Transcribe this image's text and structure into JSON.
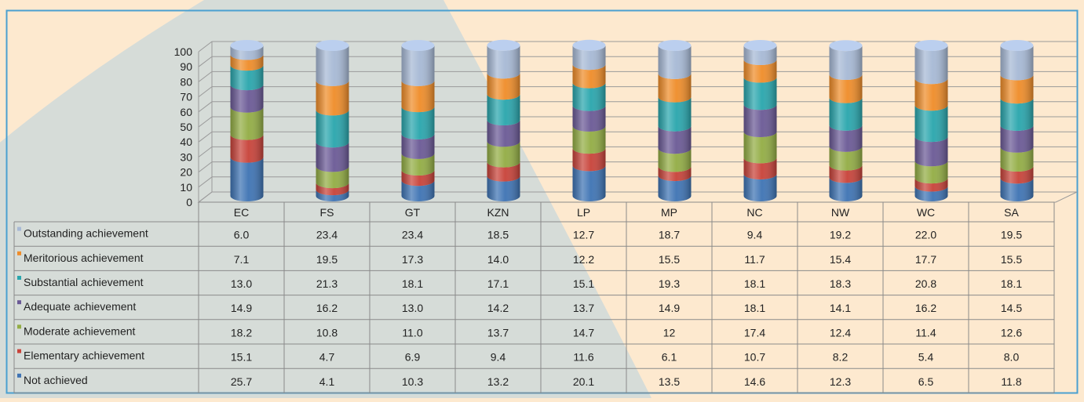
{
  "chart_data": {
    "type": "bar",
    "subtype": "stacked-cylinder-3d",
    "title": "",
    "xlabel": "",
    "ylabel": "",
    "ylim": [
      0,
      100
    ],
    "yticks": [
      0,
      10,
      20,
      30,
      40,
      50,
      60,
      70,
      80,
      90,
      100
    ],
    "grid": true,
    "legend_placement": "data-table-left",
    "categories": [
      "EC",
      "FS",
      "GT",
      "KZN",
      "LP",
      "MP",
      "NC",
      "NW",
      "WC",
      "SA"
    ],
    "series": [
      {
        "name": "Outstanding achievement",
        "color": "#a7b9d5",
        "values": [
          6.0,
          23.4,
          23.4,
          18.5,
          12.7,
          18.7,
          9.4,
          19.2,
          22.0,
          19.5
        ],
        "labels": [
          "6.0",
          "23.4",
          "23.4",
          "18.5",
          "12.7",
          "18.7",
          "9.4",
          "19.2",
          "22.0",
          "19.5"
        ]
      },
      {
        "name": "Meritorious achievement",
        "color": "#ef8d2a",
        "values": [
          7.1,
          19.5,
          17.3,
          14.0,
          12.2,
          15.5,
          11.7,
          15.4,
          17.7,
          15.5
        ],
        "labels": [
          "7.1",
          "19.5",
          "17.3",
          "14.0",
          "12.2",
          "15.5",
          "11.7",
          "15.4",
          "17.7",
          "15.5"
        ]
      },
      {
        "name": "Substantial achievement",
        "color": "#2aa6ad",
        "values": [
          13.0,
          21.3,
          18.1,
          17.1,
          15.1,
          19.3,
          18.1,
          18.3,
          20.8,
          18.1
        ],
        "labels": [
          "13.0",
          "21.3",
          "18.1",
          "17.1",
          "15.1",
          "19.3",
          "18.1",
          "18.3",
          "20.8",
          "18.1"
        ]
      },
      {
        "name": "Adequate achievement",
        "color": "#6b5a96",
        "values": [
          14.9,
          16.2,
          13.0,
          14.2,
          13.7,
          14.9,
          18.1,
          14.1,
          16.2,
          14.5
        ],
        "labels": [
          "14.9",
          "16.2",
          "13.0",
          "14.2",
          "13.7",
          "14.9",
          "18.1",
          "14.1",
          "16.2",
          "14.5"
        ]
      },
      {
        "name": "Moderate achievement",
        "color": "#93ad45",
        "values": [
          18.2,
          10.8,
          11.0,
          13.7,
          14.7,
          12,
          17.4,
          12.4,
          11.4,
          12.6
        ],
        "labels": [
          "18.2",
          "10.8",
          "11.0",
          "13.7",
          "14.7",
          "12",
          "17.4",
          "12.4",
          "11.4",
          "12.6"
        ]
      },
      {
        "name": "Elementary achievement",
        "color": "#c8433a",
        "values": [
          15.1,
          4.7,
          6.9,
          9.4,
          11.6,
          6.1,
          10.7,
          8.2,
          5.4,
          8.0
        ],
        "labels": [
          "15.1",
          "4.7",
          "6.9",
          "9.4",
          "11.6",
          "6.1",
          "10.7",
          "8.2",
          "5.4",
          "8.0"
        ]
      },
      {
        "name": "Not achieved",
        "color": "#3f74b4",
        "values": [
          25.7,
          4.1,
          10.3,
          13.2,
          20.1,
          13.5,
          14.6,
          12.3,
          6.5,
          11.8
        ],
        "labels": [
          "25.7",
          "4.1",
          "10.3",
          "13.2",
          "20.1",
          "13.5",
          "14.6",
          "12.3",
          "6.5",
          "11.8"
        ]
      }
    ],
    "colors": {
      "background": "#fde9cf",
      "background_swoosh": "#d6dcd8",
      "frame_border": "#4aa0d0",
      "gridline": "#9a9a9a",
      "table_line": "#8a8a8a",
      "text": "#222222"
    }
  }
}
